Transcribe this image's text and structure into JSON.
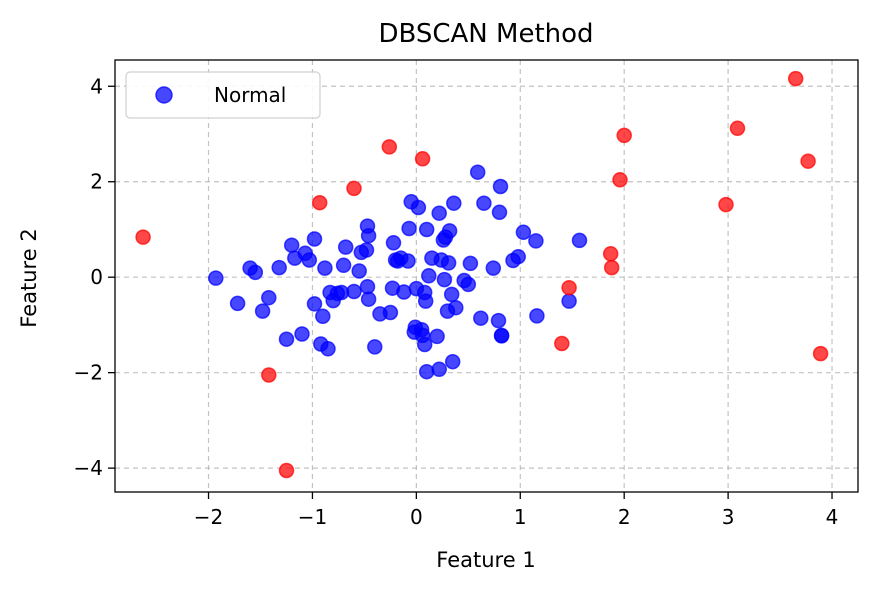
{
  "chart_data": {
    "type": "scatter",
    "title": "DBSCAN Method",
    "xlabel": "Feature 1",
    "ylabel": "Feature 2",
    "xlim": [
      -2.9,
      4.25
    ],
    "ylim": [
      -4.5,
      4.55
    ],
    "xticks": [
      -2,
      -1,
      0,
      1,
      2,
      3,
      4
    ],
    "yticks": [
      -4,
      -2,
      0,
      2,
      4
    ],
    "xtick_labels": [
      "−2",
      "−1",
      "0",
      "1",
      "2",
      "3",
      "4"
    ],
    "ytick_labels": [
      "−4",
      "−2",
      "0",
      "2",
      "4"
    ],
    "grid": true,
    "legend_position": "top-left",
    "series": [
      {
        "name": "Normal",
        "color": "#0000ff",
        "in_legend": true,
        "points": [
          [
            -1.93,
            -0.02
          ],
          [
            -1.72,
            -0.55
          ],
          [
            -1.6,
            0.19
          ],
          [
            -1.55,
            0.1
          ],
          [
            -1.48,
            -0.71
          ],
          [
            -1.42,
            -0.43
          ],
          [
            -1.32,
            0.2
          ],
          [
            -1.25,
            -1.3
          ],
          [
            -1.2,
            0.67
          ],
          [
            -1.17,
            0.4
          ],
          [
            -1.1,
            -1.19
          ],
          [
            -1.07,
            0.5
          ],
          [
            -1.03,
            0.36
          ],
          [
            -0.98,
            0.8
          ],
          [
            -0.98,
            -0.56
          ],
          [
            -0.92,
            -1.4
          ],
          [
            -0.9,
            -0.82
          ],
          [
            -0.88,
            0.19
          ],
          [
            -0.85,
            -1.5
          ],
          [
            -0.83,
            -0.32
          ],
          [
            -0.8,
            -0.49
          ],
          [
            -0.76,
            -0.34
          ],
          [
            -0.72,
            -0.32
          ],
          [
            -0.7,
            0.25
          ],
          [
            -0.68,
            0.63
          ],
          [
            -0.6,
            -0.3
          ],
          [
            -0.55,
            0.13
          ],
          [
            -0.53,
            0.52
          ],
          [
            -0.48,
            0.57
          ],
          [
            -0.47,
            1.07
          ],
          [
            -0.47,
            -0.2
          ],
          [
            -0.46,
            0.87
          ],
          [
            -0.46,
            -0.46
          ],
          [
            -0.4,
            -1.46
          ],
          [
            -0.35,
            -0.77
          ],
          [
            -0.25,
            -0.74
          ],
          [
            -0.23,
            -0.23
          ],
          [
            -0.22,
            0.72
          ],
          [
            -0.2,
            0.36
          ],
          [
            -0.18,
            0.34
          ],
          [
            -0.15,
            0.4
          ],
          [
            -0.12,
            -0.31
          ],
          [
            -0.08,
            0.34
          ],
          [
            -0.07,
            1.02
          ],
          [
            -0.05,
            1.58
          ],
          [
            -0.02,
            -1.15
          ],
          [
            -0.01,
            -1.05
          ],
          [
            0.0,
            -0.24
          ],
          [
            0.02,
            1.46
          ],
          [
            0.05,
            -1.1
          ],
          [
            0.06,
            -1.22
          ],
          [
            0.08,
            -1.41
          ],
          [
            0.08,
            -0.32
          ],
          [
            0.09,
            -0.5
          ],
          [
            0.1,
            1.0
          ],
          [
            0.1,
            -1.98
          ],
          [
            0.12,
            0.03
          ],
          [
            0.15,
            0.4
          ],
          [
            0.2,
            -1.24
          ],
          [
            0.22,
            1.34
          ],
          [
            0.22,
            -1.93
          ],
          [
            0.24,
            0.36
          ],
          [
            0.26,
            0.78
          ],
          [
            0.27,
            -0.05
          ],
          [
            0.28,
            0.84
          ],
          [
            0.3,
            -0.71
          ],
          [
            0.31,
            0.3
          ],
          [
            0.32,
            0.97
          ],
          [
            0.34,
            -0.36
          ],
          [
            0.35,
            -1.77
          ],
          [
            0.36,
            1.55
          ],
          [
            0.38,
            -0.64
          ],
          [
            0.46,
            -0.07
          ],
          [
            0.5,
            -0.15
          ],
          [
            0.52,
            0.29
          ],
          [
            0.59,
            2.2
          ],
          [
            0.62,
            -0.86
          ],
          [
            0.65,
            1.55
          ],
          [
            0.74,
            0.19
          ],
          [
            0.79,
            -0.91
          ],
          [
            0.8,
            1.36
          ],
          [
            0.81,
            1.9
          ],
          [
            0.82,
            -1.22
          ],
          [
            0.82,
            -1.23
          ],
          [
            0.93,
            0.35
          ],
          [
            0.98,
            0.43
          ],
          [
            1.03,
            0.94
          ],
          [
            1.15,
            0.76
          ],
          [
            1.16,
            -0.81
          ],
          [
            1.47,
            -0.5
          ],
          [
            1.57,
            0.77
          ]
        ]
      },
      {
        "name": "",
        "color": "#ff0000",
        "in_legend": false,
        "points": [
          [
            -2.63,
            0.84
          ],
          [
            -1.42,
            -2.05
          ],
          [
            -1.25,
            -4.05
          ],
          [
            -0.93,
            1.56
          ],
          [
            -0.6,
            1.86
          ],
          [
            -0.26,
            2.73
          ],
          [
            0.06,
            2.48
          ],
          [
            1.4,
            -1.39
          ],
          [
            1.47,
            -0.22
          ],
          [
            1.87,
            0.49
          ],
          [
            1.88,
            0.2
          ],
          [
            1.96,
            2.04
          ],
          [
            2.0,
            2.97
          ],
          [
            2.98,
            1.52
          ],
          [
            3.09,
            3.12
          ],
          [
            3.65,
            4.16
          ],
          [
            3.77,
            2.43
          ],
          [
            3.89,
            -1.6
          ]
        ]
      }
    ]
  }
}
